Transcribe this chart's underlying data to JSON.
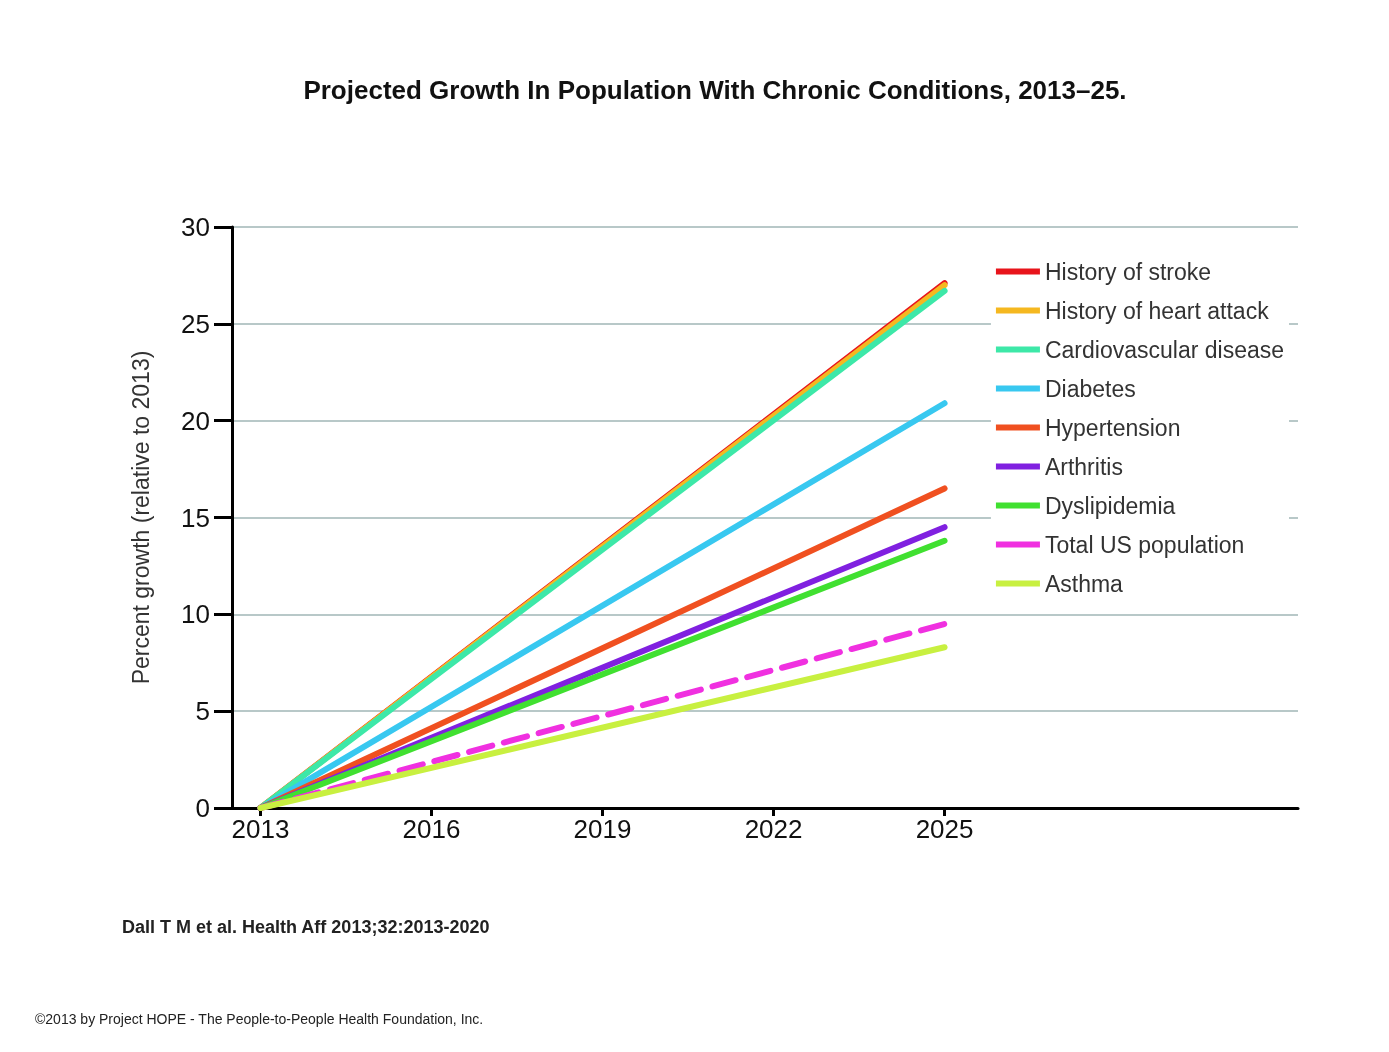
{
  "chart_data": {
    "type": "line",
    "title": "Projected Growth In Population With Chronic Conditions, 2013–25.",
    "ylabel": "Percent growth (relative to 2013)",
    "x": [
      2013,
      2025
    ],
    "xlim": [
      2012.5,
      2031.2
    ],
    "xticks": [
      2013,
      2016,
      2019,
      2022,
      2025
    ],
    "ylim": [
      0,
      30
    ],
    "yticks": [
      0,
      5,
      10,
      15,
      20,
      25,
      30
    ],
    "grid": "y",
    "legend": "top right",
    "marker": "none",
    "line_style": "solid",
    "series": [
      {
        "name": "History of stroke",
        "color": "#e8141b",
        "values": [
          0,
          27.1
        ]
      },
      {
        "name": "History of heart attack",
        "color": "#f5b820",
        "values": [
          0,
          27.0
        ]
      },
      {
        "name": "Cardiovascular disease",
        "color": "#3de8a8",
        "values": [
          0,
          26.7
        ]
      },
      {
        "name": "Diabetes",
        "color": "#38c8f0",
        "values": [
          0,
          20.9
        ]
      },
      {
        "name": "Hypertension",
        "color": "#f05020",
        "values": [
          0,
          16.5
        ]
      },
      {
        "name": "Arthritis",
        "color": "#8020e0",
        "values": [
          0,
          14.5
        ]
      },
      {
        "name": "Dyslipidemia",
        "color": "#40e030",
        "values": [
          0,
          13.8
        ]
      },
      {
        "name": "Total US population",
        "color": "#f030e0",
        "values": [
          0,
          9.5
        ],
        "line_style": "dashed"
      },
      {
        "name": "Asthma",
        "color": "#c8f040",
        "values": [
          0,
          8.3
        ]
      }
    ],
    "annotations": [
      "Dall T M et al. Health Aff 2013;32:2013-2020",
      "©2013 by Project HOPE - The People-to-People Health Foundation, Inc."
    ]
  }
}
